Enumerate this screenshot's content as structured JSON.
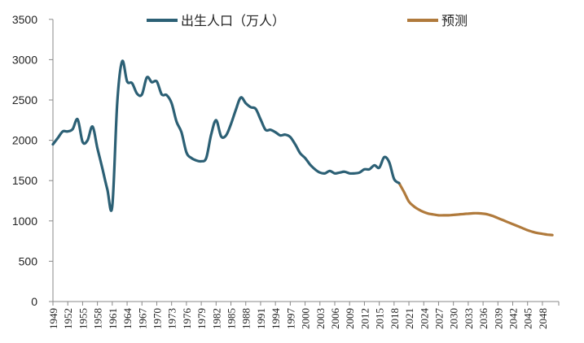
{
  "chart_data": {
    "type": "line",
    "title": "",
    "xlabel": "",
    "ylabel": "",
    "ylim": [
      0,
      3500
    ],
    "xlim": [
      1949,
      2050
    ],
    "yticks": [
      0,
      500,
      1000,
      1500,
      2000,
      2500,
      3000,
      3500
    ],
    "xticks": [
      "1949",
      "1952",
      "1955",
      "1958",
      "1961",
      "1964",
      "1967",
      "1970",
      "1973",
      "1976",
      "1979",
      "1982",
      "1985",
      "1988",
      "1991",
      "1994",
      "1997",
      "2000",
      "2003",
      "2006",
      "2009",
      "2012",
      "2015",
      "2018",
      "2021",
      "2024",
      "2027",
      "2030",
      "2033",
      "2036",
      "2039",
      "2042",
      "2045",
      "2048"
    ],
    "grid": false,
    "legend_position": "top",
    "series": [
      {
        "name": "出生人口（万人）",
        "color": "#2c6075",
        "x": [
          1949,
          1950,
          1951,
          1952,
          1953,
          1954,
          1955,
          1956,
          1957,
          1958,
          1959,
          1960,
          1961,
          1962,
          1963,
          1964,
          1965,
          1966,
          1967,
          1968,
          1969,
          1970,
          1971,
          1972,
          1973,
          1974,
          1975,
          1976,
          1977,
          1978,
          1979,
          1980,
          1981,
          1982,
          1983,
          1984,
          1985,
          1986,
          1987,
          1988,
          1989,
          1990,
          1991,
          1992,
          1993,
          1994,
          1995,
          1996,
          1997,
          1998,
          1999,
          2000,
          2001,
          2002,
          2003,
          2004,
          2005,
          2006,
          2007,
          2008,
          2009,
          2010,
          2011,
          2012,
          2013,
          2014,
          2015,
          2016,
          2017,
          2018,
          2019,
          2020
        ],
        "values": [
          1950,
          2030,
          2110,
          2110,
          2140,
          2260,
          1980,
          2000,
          2170,
          1900,
          1650,
          1390,
          1180,
          2460,
          2980,
          2730,
          2710,
          2580,
          2570,
          2780,
          2720,
          2730,
          2570,
          2560,
          2460,
          2230,
          2100,
          1850,
          1780,
          1750,
          1740,
          1780,
          2070,
          2250,
          2050,
          2060,
          2200,
          2380,
          2530,
          2460,
          2410,
          2390,
          2260,
          2130,
          2130,
          2100,
          2060,
          2070,
          2040,
          1950,
          1840,
          1780,
          1700,
          1640,
          1600,
          1590,
          1620,
          1590,
          1600,
          1610,
          1590,
          1590,
          1600,
          1640,
          1640,
          1690,
          1660,
          1790,
          1730,
          1520,
          1470,
          null
        ]
      },
      {
        "name": "预测",
        "color": "#b07a3c",
        "x": [
          2019,
          2020,
          2021,
          2022,
          2023,
          2024,
          2025,
          2026,
          2027,
          2028,
          2029,
          2030,
          2031,
          2032,
          2033,
          2034,
          2035,
          2036,
          2037,
          2038,
          2039,
          2040,
          2041,
          2042,
          2043,
          2044,
          2045,
          2046,
          2047,
          2048,
          2049,
          2050
        ],
        "values": [
          1470,
          1360,
          1240,
          1180,
          1140,
          1110,
          1090,
          1080,
          1070,
          1070,
          1070,
          1075,
          1080,
          1085,
          1090,
          1095,
          1095,
          1090,
          1080,
          1060,
          1035,
          1010,
          985,
          960,
          935,
          910,
          885,
          865,
          850,
          840,
          830,
          825
        ]
      }
    ]
  },
  "legend": {
    "items": [
      {
        "label": "出生人口（万人）",
        "color": "#2c6075"
      },
      {
        "label": "预测",
        "color": "#b07a3c"
      }
    ]
  }
}
